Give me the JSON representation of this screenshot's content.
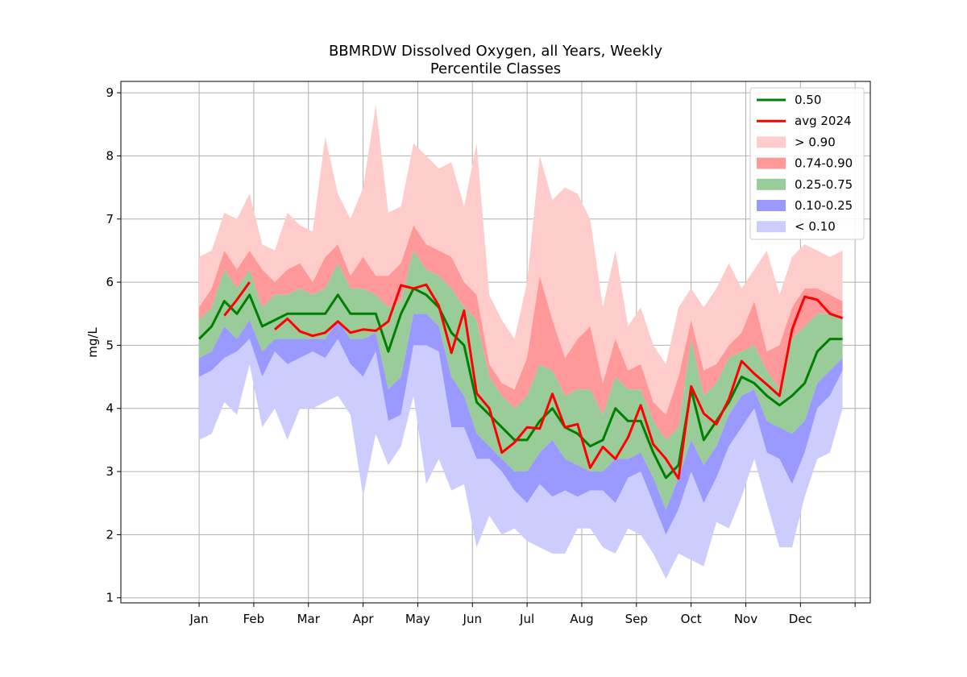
{
  "chart_data": {
    "type": "area",
    "title": [
      "BBMRDW Dissolved Oxygen, all Years, Weekly",
      "Percentile Classes"
    ],
    "xlabel": "",
    "ylabel": "mg/L",
    "x_tick_labels": [
      "Jan",
      "Feb",
      "Mar",
      "Apr",
      "May",
      "Jun",
      "Jul",
      "Aug",
      "Sep",
      "Oct",
      "Nov",
      "Dec",
      ""
    ],
    "y_ticks": [
      1,
      2,
      3,
      4,
      5,
      6,
      7,
      8,
      9
    ],
    "ylim": [
      0.92,
      9.18
    ],
    "xlim": [
      -6.2,
      53.2
    ],
    "grid": true,
    "legend_position": "top-right",
    "colors": {
      "p50": "#008000",
      "avg": "#ff0000",
      "gt90": "#ffcccc",
      "p74_90": "#ff9999",
      "p25_75": "#99cc99",
      "p10_25": "#9999ff",
      "lt10": "#ccccff"
    },
    "legend": [
      {
        "key": "p50",
        "label": "0.50",
        "kind": "line"
      },
      {
        "key": "avg",
        "label": "avg 2024",
        "kind": "line"
      },
      {
        "key": "gt90",
        "label": "> 0.90",
        "kind": "patch"
      },
      {
        "key": "p74_90",
        "label": "0.74-0.90",
        "kind": "patch"
      },
      {
        "key": "p25_75",
        "label": "0.25-0.75",
        "kind": "patch"
      },
      {
        "key": "p10_25",
        "label": "0.10-0.25",
        "kind": "patch"
      },
      {
        "key": "lt10",
        "label": "< 0.10",
        "kind": "patch"
      }
    ],
    "weeks": [
      0,
      1,
      2,
      3,
      4,
      5,
      6,
      7,
      8,
      9,
      10,
      11,
      12,
      13,
      14,
      15,
      16,
      17,
      18,
      19,
      20,
      21,
      22,
      23,
      24,
      25,
      26,
      27,
      28,
      29,
      30,
      31,
      32,
      33,
      34,
      35,
      36,
      37,
      38,
      39,
      40,
      41,
      42,
      43,
      44,
      45,
      46,
      47,
      48,
      49,
      50,
      51
    ],
    "max": [
      6.4,
      6.5,
      7.1,
      7.0,
      7.4,
      6.6,
      6.5,
      7.1,
      6.9,
      6.8,
      8.3,
      7.4,
      7.0,
      7.5,
      8.8,
      7.1,
      7.2,
      8.2,
      8.0,
      7.8,
      7.9,
      7.2,
      8.2,
      5.8,
      5.4,
      5.1,
      6.0,
      8.0,
      7.3,
      7.5,
      7.4,
      7.0,
      5.6,
      6.5,
      5.3,
      5.6,
      5.0,
      4.7,
      5.6,
      5.9,
      5.6,
      5.9,
      6.3,
      5.9,
      6.2,
      6.5,
      5.8,
      6.4,
      6.6,
      6.5,
      6.4,
      6.5
    ],
    "p90": [
      5.6,
      5.9,
      6.5,
      6.2,
      6.5,
      6.2,
      6.0,
      6.2,
      6.3,
      6.0,
      6.4,
      6.6,
      6.1,
      6.4,
      6.1,
      6.1,
      6.3,
      6.9,
      6.6,
      6.5,
      6.4,
      6.0,
      5.8,
      4.7,
      4.4,
      4.3,
      4.8,
      6.1,
      5.4,
      4.8,
      5.1,
      5.3,
      4.4,
      5.1,
      4.6,
      4.7,
      4.1,
      3.9,
      4.5,
      5.4,
      4.6,
      4.7,
      5.0,
      5.2,
      5.7,
      4.9,
      5.0,
      5.6,
      5.9,
      5.9,
      5.8,
      5.7
    ],
    "p75": [
      5.4,
      5.6,
      6.2,
      5.9,
      6.2,
      5.6,
      5.8,
      5.8,
      5.9,
      5.8,
      5.9,
      6.3,
      5.9,
      5.9,
      5.8,
      5.6,
      5.7,
      6.5,
      6.2,
      6.1,
      5.9,
      5.6,
      5.4,
      4.5,
      4.2,
      4.0,
      4.2,
      4.7,
      4.6,
      4.2,
      4.3,
      4.3,
      3.9,
      4.5,
      4.3,
      4.3,
      3.8,
      3.5,
      3.7,
      5.1,
      4.2,
      4.4,
      4.8,
      4.9,
      5.0,
      4.6,
      4.3,
      5.1,
      5.3,
      5.5,
      5.5,
      5.4
    ],
    "p25": [
      4.8,
      4.9,
      5.3,
      5.1,
      5.4,
      4.9,
      5.1,
      5.1,
      5.1,
      5.1,
      5.1,
      5.4,
      5.1,
      5.1,
      5.2,
      4.3,
      4.5,
      5.5,
      5.5,
      5.3,
      4.5,
      4.2,
      3.6,
      3.4,
      3.2,
      3.0,
      3.0,
      3.3,
      3.5,
      3.2,
      3.1,
      3.0,
      3.0,
      3.2,
      3.2,
      3.3,
      2.9,
      2.4,
      2.9,
      3.5,
      3.1,
      3.4,
      3.9,
      4.2,
      4.3,
      3.8,
      3.7,
      3.6,
      3.8,
      4.4,
      4.6,
      4.8
    ],
    "p10": [
      4.5,
      4.6,
      4.8,
      4.9,
      5.1,
      4.5,
      4.9,
      4.7,
      4.8,
      4.9,
      4.8,
      5.1,
      4.7,
      4.5,
      4.9,
      3.8,
      3.9,
      5.0,
      5.0,
      4.9,
      3.7,
      3.7,
      3.2,
      3.2,
      3.0,
      2.7,
      2.5,
      2.8,
      2.6,
      2.7,
      2.6,
      2.7,
      2.7,
      2.5,
      2.9,
      3.0,
      2.5,
      2.0,
      2.4,
      3.0,
      2.5,
      2.9,
      3.4,
      3.7,
      4.0,
      3.3,
      3.2,
      2.8,
      3.3,
      4.0,
      4.2,
      4.6
    ],
    "min": [
      3.5,
      3.6,
      4.1,
      3.9,
      4.7,
      3.7,
      4.0,
      3.5,
      4.0,
      4.0,
      4.1,
      4.2,
      3.9,
      2.6,
      3.6,
      3.1,
      3.4,
      4.2,
      2.8,
      3.2,
      2.7,
      2.8,
      1.8,
      2.3,
      2.0,
      2.1,
      1.9,
      1.8,
      1.7,
      1.7,
      2.1,
      2.1,
      1.8,
      1.7,
      2.1,
      2.0,
      1.7,
      1.3,
      1.7,
      1.6,
      1.5,
      2.2,
      2.1,
      2.6,
      3.2,
      2.5,
      1.8,
      1.8,
      2.6,
      3.2,
      3.3,
      4.0
    ],
    "p50": [
      5.1,
      5.3,
      5.7,
      5.5,
      5.8,
      5.3,
      5.4,
      5.5,
      5.5,
      5.5,
      5.5,
      5.8,
      5.5,
      5.5,
      5.5,
      4.9,
      5.5,
      5.9,
      5.8,
      5.6,
      5.2,
      5.0,
      4.1,
      3.9,
      3.7,
      3.5,
      3.5,
      3.8,
      4.0,
      3.7,
      3.6,
      3.4,
      3.5,
      4.0,
      3.8,
      3.8,
      3.3,
      2.9,
      3.1,
      4.3,
      3.5,
      3.8,
      4.1,
      4.5,
      4.4,
      4.2,
      4.05,
      4.2,
      4.4,
      4.9,
      5.1,
      5.1
    ],
    "avg_2024": [
      null,
      null,
      5.47,
      5.72,
      6.0,
      null,
      5.25,
      5.42,
      5.22,
      5.15,
      5.2,
      5.38,
      5.2,
      5.25,
      5.23,
      5.38,
      5.95,
      5.9,
      5.96,
      5.63,
      4.88,
      5.55,
      4.24,
      4.0,
      3.3,
      3.46,
      3.7,
      3.68,
      4.23,
      3.7,
      3.75,
      3.06,
      3.39,
      3.2,
      3.54,
      4.05,
      3.43,
      3.2,
      2.89,
      4.35,
      3.92,
      3.75,
      4.15,
      4.75,
      4.55,
      4.38,
      4.2,
      5.25,
      5.77,
      5.72,
      5.5,
      5.43
    ]
  }
}
